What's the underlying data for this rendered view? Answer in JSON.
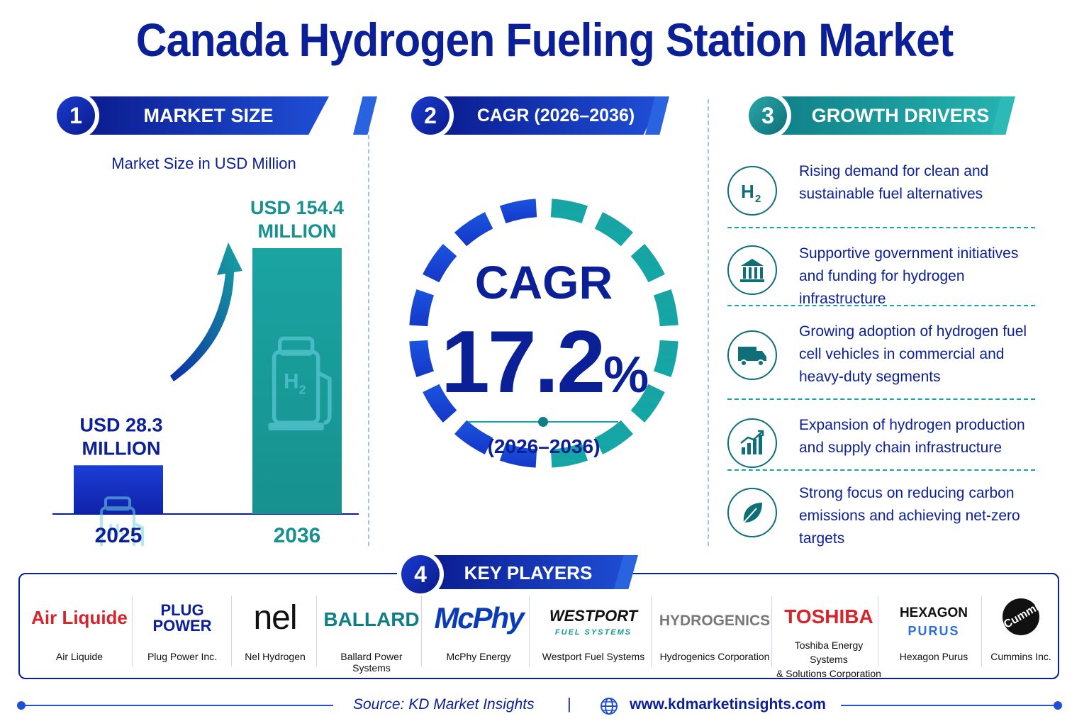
{
  "title": "Canada Hydrogen Fueling Station Market",
  "sections": {
    "market_size": {
      "number": "1",
      "label": "MARKET SIZE",
      "subtitle": "Market Size in USD Million"
    },
    "cagr": {
      "number": "2",
      "label": "CAGR (2026–2036)"
    },
    "growth_drivers": {
      "number": "3",
      "label": "GROWTH DRIVERS"
    },
    "key_players": {
      "number": "4",
      "label": "KEY PLAYERS"
    }
  },
  "chart_data": {
    "type": "bar",
    "categories": [
      "2025",
      "2036"
    ],
    "values": [
      28.3,
      154.4
    ],
    "value_labels": [
      "USD 28.3\nMILLION",
      "USD 154.4\nMILLION"
    ],
    "bar_colors": [
      "#1530b8",
      "#1c9c9c"
    ],
    "unit": "USD Million",
    "title": "Market Size in USD Million"
  },
  "cagr": {
    "label": "CAGR",
    "value": "17.2",
    "unit": "%",
    "period": "(2026–2036)"
  },
  "drivers": [
    {
      "icon": "h2-icon",
      "text": "Rising demand for clean and sustainable fuel alternatives"
    },
    {
      "icon": "government-building-icon",
      "text": "Supportive government initiatives and funding for hydrogen infrastructure"
    },
    {
      "icon": "truck-icon",
      "text": "Growing adoption of hydrogen fuel cell vehicles in commercial and heavy-duty segments"
    },
    {
      "icon": "growth-chart-icon",
      "text": "Expansion of hydrogen production and supply chain infrastructure"
    },
    {
      "icon": "leaf-icon",
      "text": "Strong focus on reducing carbon emissions and achieving net-zero targets"
    }
  ],
  "players": [
    {
      "logo": "Air Liquide",
      "name": "Air Liquide"
    },
    {
      "logo": "PLUG\nPOWER",
      "name": "Plug Power Inc."
    },
    {
      "logo": "nel",
      "name": "Nel Hydrogen"
    },
    {
      "logo": "BALLARD",
      "name": "Ballard Power Systems"
    },
    {
      "logo": "McPhy",
      "name": "McPhy Energy"
    },
    {
      "logo": "WESTPORT",
      "logo_sub": "FUEL SYSTEMS",
      "name": "Westport Fuel Systems"
    },
    {
      "logo": "HYDROGENICS",
      "name": "Hydrogenics Corporation"
    },
    {
      "logo": "TOSHIBA",
      "name": "Toshiba Energy Systems\n& Solutions Corporation"
    },
    {
      "logo": "HEXAGON",
      "logo_sub": "PURUS",
      "name": "Hexagon Purus"
    },
    {
      "logo": "Cummins",
      "name": "Cummins Inc."
    }
  ],
  "footer": {
    "source": "Source: KD Market Insights",
    "separator": "|",
    "website": "www.kdmarketinsights.com"
  },
  "colors": {
    "navy": "#0b1f96",
    "blue": "#1f4fd6",
    "teal": "#1aa3a4",
    "dark_teal": "#0e6f79"
  }
}
